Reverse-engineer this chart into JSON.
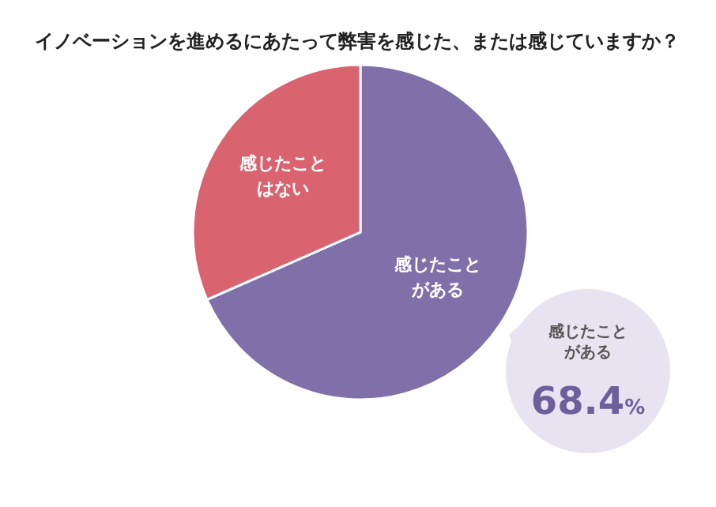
{
  "chart_data": {
    "type": "pie",
    "title": "イノベーションを進めるにあたって弊害を感じた、または感じていますか？",
    "categories": [
      "感じたことがある",
      "感じたことはない"
    ],
    "values": [
      68.4,
      31.6
    ],
    "colors": [
      "#7f70aa",
      "#d9636f"
    ],
    "value_labels": [
      "68.4%",
      null
    ]
  }
}
